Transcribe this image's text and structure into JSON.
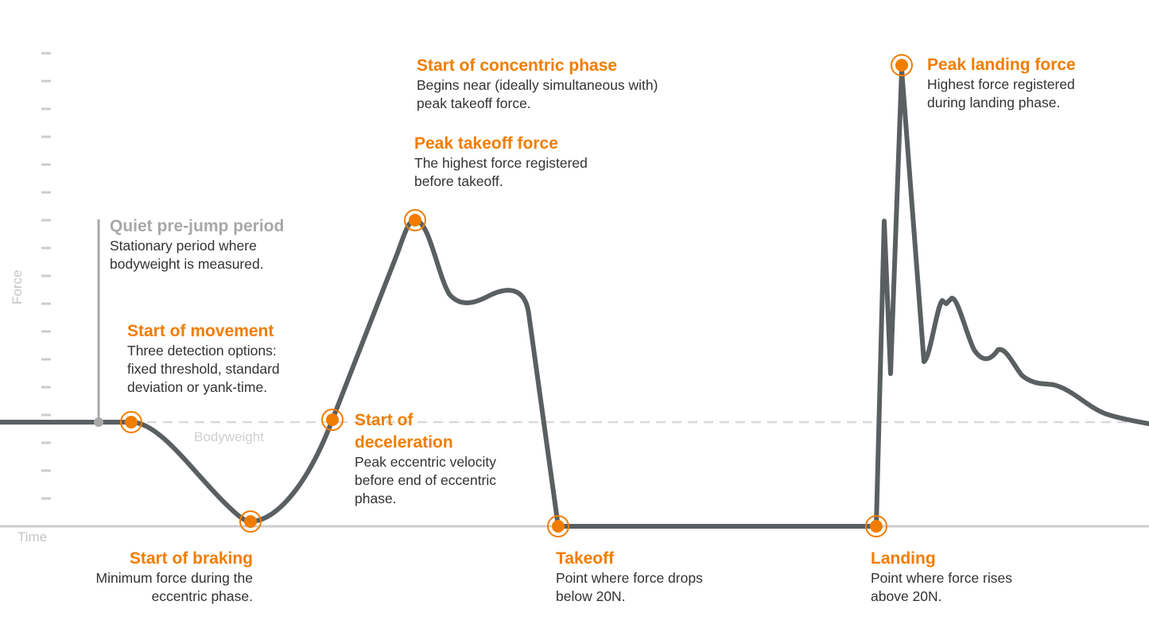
{
  "axes": {
    "y_label": "Force",
    "x_label": "Time",
    "reference_line": "Bodyweight"
  },
  "colors": {
    "accent": "#f07d00",
    "curve": "#5a5f61",
    "axis": "#cccccc",
    "muted": "#a8a8a8"
  },
  "annotations": [
    {
      "title": "Quiet pre-jump period",
      "desc": [
        "Stationary period where",
        "bodyweight is measured."
      ]
    },
    {
      "title": "Start of movement",
      "desc": [
        "Three detection options:",
        "fixed threshold, standard",
        "deviation or yank-time."
      ]
    },
    {
      "title": "Start of braking",
      "desc": [
        "Minimum force during the",
        "eccentric phase."
      ]
    },
    {
      "title": "Start of",
      "title2": "deceleration",
      "desc": [
        "Peak eccentric velocity",
        "before end of eccentric",
        "phase."
      ]
    },
    {
      "title": "Peak takeoff force",
      "desc": [
        "The highest force registered",
        "before takeoff."
      ]
    },
    {
      "title": "Start of concentric phase",
      "desc": [
        "Begins near (ideally simultaneous with)",
        "peak takeoff force."
      ]
    },
    {
      "title": "Takeoff",
      "desc": [
        "Point where force drops",
        "below 20N."
      ]
    },
    {
      "title": "Landing",
      "desc": [
        "Point where force rises",
        "above 20N."
      ]
    },
    {
      "title": "Peak landing force",
      "desc": [
        "Highest force registered",
        "during landing phase."
      ]
    }
  ]
}
